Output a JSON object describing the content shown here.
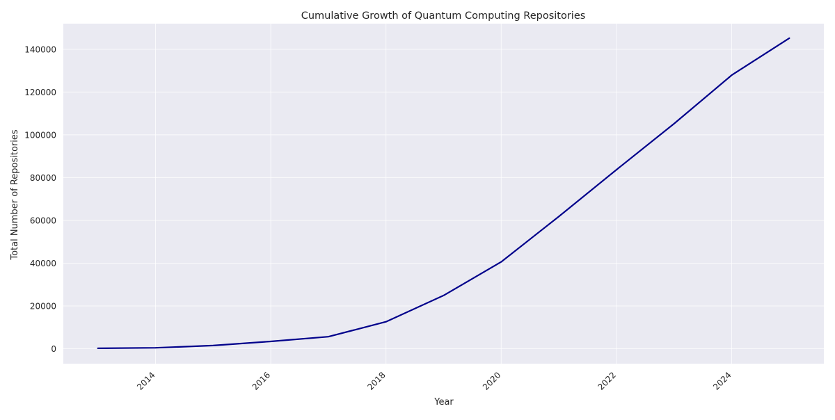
{
  "chart_data": {
    "type": "line",
    "title": "Cumulative Growth of Quantum Computing Repositories",
    "xlabel": "Year",
    "ylabel": "Total Number of Repositories",
    "xlim": [
      2012.4,
      2025.6
    ],
    "ylim": [
      -7000,
      152000
    ],
    "x_ticks": [
      2014,
      2016,
      2018,
      2020,
      2022,
      2024
    ],
    "y_ticks": [
      0,
      20000,
      40000,
      60000,
      80000,
      100000,
      120000,
      140000
    ],
    "grid": true,
    "series": [
      {
        "x": [
          2013,
          2014,
          2015,
          2016,
          2017,
          2018,
          2019,
          2020,
          2021,
          2022,
          2023,
          2024,
          2025
        ],
        "y": [
          200,
          400,
          1500,
          3400,
          5600,
          12600,
          24900,
          40600,
          61800,
          83700,
          105200,
          127900,
          145200
        ]
      }
    ],
    "colors": {
      "line": "#00008b",
      "plot_bg": "#eaeaf2",
      "grid": "#ffffff"
    }
  }
}
